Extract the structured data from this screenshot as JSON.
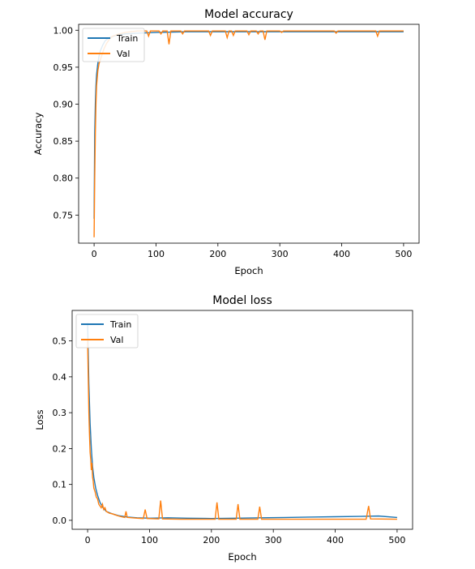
{
  "chart_data": [
    {
      "type": "line",
      "title": "Model accuracy",
      "xlabel": "Epoch",
      "ylabel": "Accuracy",
      "xlim": [
        -25,
        525
      ],
      "ylim": [
        0.712,
        1.008
      ],
      "xticks": [
        0,
        100,
        200,
        300,
        400,
        500
      ],
      "yticks": [
        0.75,
        0.8,
        0.85,
        0.9,
        0.95,
        1.0
      ],
      "ytick_labels": [
        "0.75",
        "0.80",
        "0.85",
        "0.90",
        "0.95",
        "1.00"
      ],
      "legend": "upper left",
      "series": [
        {
          "name": "Train",
          "color": "#1f77b4",
          "points": [
            [
              0,
              0.745
            ],
            [
              1,
              0.86
            ],
            [
              2,
              0.9
            ],
            [
              3,
              0.925
            ],
            [
              4,
              0.94
            ],
            [
              6,
              0.955
            ],
            [
              8,
              0.965
            ],
            [
              10,
              0.972
            ],
            [
              14,
              0.98
            ],
            [
              18,
              0.986
            ],
            [
              25,
              0.99
            ],
            [
              35,
              0.993
            ],
            [
              50,
              0.995
            ],
            [
              70,
              0.996
            ],
            [
              100,
              0.997
            ],
            [
              150,
              0.998
            ],
            [
              200,
              0.998
            ],
            [
              300,
              0.998
            ],
            [
              400,
              0.998
            ],
            [
              500,
              0.998
            ]
          ]
        },
        {
          "name": "Val",
          "color": "#ff7f0e",
          "points": [
            [
              0,
              0.72
            ],
            [
              1,
              0.8
            ],
            [
              2,
              0.86
            ],
            [
              3,
              0.9
            ],
            [
              4,
              0.925
            ],
            [
              6,
              0.945
            ],
            [
              8,
              0.955
            ],
            [
              10,
              0.96
            ],
            [
              12,
              0.965
            ],
            [
              16,
              0.975
            ],
            [
              20,
              0.982
            ],
            [
              25,
              0.988
            ],
            [
              30,
              0.992
            ],
            [
              40,
              0.995
            ],
            [
              50,
              0.997
            ],
            [
              60,
              0.998
            ],
            [
              70,
              0.999
            ],
            [
              85,
              0.999
            ],
            [
              88,
              0.992
            ],
            [
              91,
              0.999
            ],
            [
              105,
              0.999
            ],
            [
              108,
              0.995
            ],
            [
              111,
              0.999
            ],
            [
              118,
              0.999
            ],
            [
              121,
              0.981
            ],
            [
              124,
              0.999
            ],
            [
              140,
              0.999
            ],
            [
              143,
              0.995
            ],
            [
              146,
              0.999
            ],
            [
              185,
              0.999
            ],
            [
              188,
              0.993
            ],
            [
              191,
              0.999
            ],
            [
              212,
              0.999
            ],
            [
              215,
              0.99
            ],
            [
              218,
              0.999
            ],
            [
              222,
              0.999
            ],
            [
              225,
              0.993
            ],
            [
              228,
              0.999
            ],
            [
              247,
              0.999
            ],
            [
              250,
              0.994
            ],
            [
              253,
              0.999
            ],
            [
              262,
              0.999
            ],
            [
              265,
              0.995
            ],
            [
              268,
              0.999
            ],
            [
              273,
              0.999
            ],
            [
              276,
              0.987
            ],
            [
              279,
              0.999
            ],
            [
              300,
              0.999
            ],
            [
              303,
              0.997
            ],
            [
              306,
              0.999
            ],
            [
              388,
              0.999
            ],
            [
              391,
              0.996
            ],
            [
              394,
              0.999
            ],
            [
              455,
              0.999
            ],
            [
              458,
              0.992
            ],
            [
              461,
              0.999
            ],
            [
              500,
              0.999
            ]
          ]
        }
      ]
    },
    {
      "type": "line",
      "title": "Model loss",
      "xlabel": "Epoch",
      "ylabel": "Loss",
      "xlim": [
        -25,
        525
      ],
      "ylim": [
        -0.025,
        0.585
      ],
      "xticks": [
        0,
        100,
        200,
        300,
        400,
        500
      ],
      "yticks": [
        0.0,
        0.1,
        0.2,
        0.3,
        0.4,
        0.5
      ],
      "ytick_labels": [
        "0.0",
        "0.1",
        "0.2",
        "0.3",
        "0.4",
        "0.5"
      ],
      "legend": "upper left",
      "series": [
        {
          "name": "Train",
          "color": "#1f77b4",
          "points": [
            [
              0,
              0.55
            ],
            [
              2,
              0.38
            ],
            [
              4,
              0.27
            ],
            [
              6,
              0.2
            ],
            [
              8,
              0.15
            ],
            [
              10,
              0.12
            ],
            [
              13,
              0.09
            ],
            [
              16,
              0.07
            ],
            [
              20,
              0.05
            ],
            [
              25,
              0.035
            ],
            [
              30,
              0.025
            ],
            [
              40,
              0.018
            ],
            [
              50,
              0.013
            ],
            [
              65,
              0.009
            ],
            [
              80,
              0.007
            ],
            [
              100,
              0.006
            ],
            [
              130,
              0.007
            ],
            [
              160,
              0.006
            ],
            [
              200,
              0.005
            ],
            [
              240,
              0.006
            ],
            [
              280,
              0.007
            ],
            [
              320,
              0.008
            ],
            [
              360,
              0.009
            ],
            [
              400,
              0.01
            ],
            [
              440,
              0.011
            ],
            [
              470,
              0.012
            ],
            [
              500,
              0.008
            ]
          ]
        },
        {
          "name": "Val",
          "color": "#ff7f0e",
          "points": [
            [
              0,
              0.5
            ],
            [
              1,
              0.4
            ],
            [
              2,
              0.3
            ],
            [
              3,
              0.24
            ],
            [
              4,
              0.19
            ],
            [
              5,
              0.17
            ],
            [
              6,
              0.14
            ],
            [
              7,
              0.16
            ],
            [
              8,
              0.12
            ],
            [
              9,
              0.11
            ],
            [
              10,
              0.09
            ],
            [
              12,
              0.08
            ],
            [
              14,
              0.065
            ],
            [
              16,
              0.06
            ],
            [
              18,
              0.045
            ],
            [
              20,
              0.04
            ],
            [
              22,
              0.035
            ],
            [
              24,
              0.045
            ],
            [
              26,
              0.03
            ],
            [
              28,
              0.035
            ],
            [
              30,
              0.025
            ],
            [
              35,
              0.02
            ],
            [
              40,
              0.018
            ],
            [
              45,
              0.015
            ],
            [
              50,
              0.012
            ],
            [
              55,
              0.01
            ],
            [
              60,
              0.008
            ],
            [
              62,
              0.025
            ],
            [
              64,
              0.008
            ],
            [
              80,
              0.006
            ],
            [
              90,
              0.005
            ],
            [
              93,
              0.03
            ],
            [
              96,
              0.005
            ],
            [
              115,
              0.004
            ],
            [
              118,
              0.055
            ],
            [
              121,
              0.004
            ],
            [
              150,
              0.003
            ],
            [
              200,
              0.003
            ],
            [
              206,
              0.003
            ],
            [
              209,
              0.05
            ],
            [
              212,
              0.003
            ],
            [
              240,
              0.003
            ],
            [
              243,
              0.045
            ],
            [
              246,
              0.003
            ],
            [
              275,
              0.003
            ],
            [
              278,
              0.038
            ],
            [
              281,
              0.003
            ],
            [
              350,
              0.003
            ],
            [
              400,
              0.003
            ],
            [
              450,
              0.003
            ],
            [
              454,
              0.04
            ],
            [
              457,
              0.004
            ],
            [
              500,
              0.003
            ]
          ]
        }
      ]
    }
  ]
}
